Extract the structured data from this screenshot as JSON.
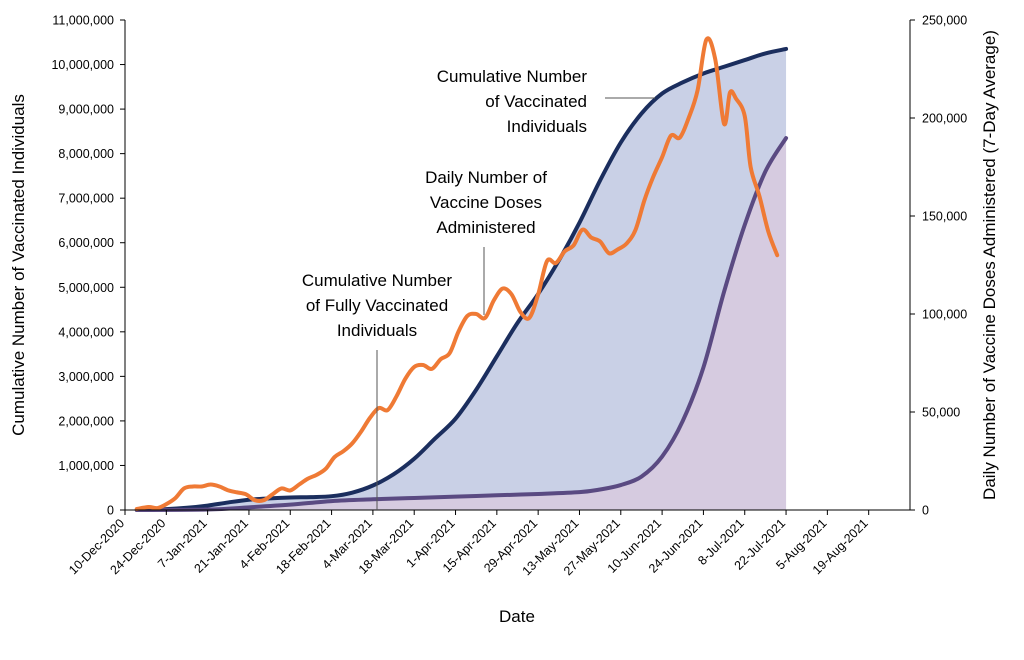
{
  "chart_data": {
    "type": "area",
    "xlabel": "Date",
    "ylabel": "Cumulative Number of Vaccinated Individuals",
    "y2label": "Daily Number of Vaccine Doses Administered (7-Day Average)",
    "xlim": [
      "2020-12-10",
      "2021-09-02"
    ],
    "ylim": [
      0,
      11000000
    ],
    "y2lim": [
      0,
      250000
    ],
    "x_tick_labels": [
      "10-Dec-2020",
      "24-Dec-2020",
      "7-Jan-2021",
      "21-Jan-2021",
      "4-Feb-2021",
      "18-Feb-2021",
      "4-Mar-2021",
      "18-Mar-2021",
      "1-Apr-2021",
      "15-Apr-2021",
      "29-Apr-2021",
      "13-May-2021",
      "27-May-2021",
      "10-Jun-2021",
      "24-Jun-2021",
      "8-Jul-2021",
      "22-Jul-2021",
      "5-Aug-2021",
      "19-Aug-2021"
    ],
    "y_tick_labels": [
      "0",
      "1,000,000",
      "2,000,000",
      "3,000,000",
      "4,000,000",
      "5,000,000",
      "6,000,000",
      "7,000,000",
      "8,000,000",
      "9,000,000",
      "10,000,000",
      "11,000,000"
    ],
    "y2_tick_labels": [
      "0",
      "50,000",
      "100,000",
      "150,000",
      "200,000",
      "250,000"
    ],
    "grid": false,
    "legend": "none",
    "series": [
      {
        "name": "Cumulative Number of Vaccinated Individuals",
        "axis": "left",
        "color": "#1b2e5e",
        "fill": "#c9d0e6",
        "x": [
          "2020-12-14",
          "2020-12-24",
          "2020-12-31",
          "2021-01-07",
          "2021-01-14",
          "2021-01-21",
          "2021-01-28",
          "2021-02-04",
          "2021-02-11",
          "2021-02-18",
          "2021-02-25",
          "2021-03-04",
          "2021-03-11",
          "2021-03-18",
          "2021-03-25",
          "2021-04-01",
          "2021-04-08",
          "2021-04-15",
          "2021-04-22",
          "2021-04-29",
          "2021-05-06",
          "2021-05-13",
          "2021-05-20",
          "2021-05-27",
          "2021-06-03",
          "2021-06-10",
          "2021-06-17",
          "2021-06-24",
          "2021-07-01",
          "2021-07-08",
          "2021-07-15",
          "2021-07-22"
        ],
        "values": [
          0,
          20000,
          50000,
          100000,
          170000,
          230000,
          260000,
          280000,
          290000,
          310000,
          390000,
          550000,
          800000,
          1150000,
          1600000,
          2050000,
          2700000,
          3450000,
          4200000,
          4850000,
          5600000,
          6450000,
          7400000,
          8250000,
          8900000,
          9350000,
          9600000,
          9800000,
          9950000,
          10100000,
          10250000,
          10350000
        ]
      },
      {
        "name": "Cumulative Number of Fully Vaccinated Individuals",
        "axis": "left",
        "color": "#5a4a82",
        "fill": "#d9c9de",
        "x": [
          "2020-12-14",
          "2021-01-07",
          "2021-01-21",
          "2021-02-04",
          "2021-02-18",
          "2021-03-04",
          "2021-03-18",
          "2021-04-01",
          "2021-04-15",
          "2021-04-29",
          "2021-05-13",
          "2021-05-20",
          "2021-05-27",
          "2021-06-03",
          "2021-06-10",
          "2021-06-17",
          "2021-06-24",
          "2021-07-01",
          "2021-07-08",
          "2021-07-15",
          "2021-07-22"
        ],
        "values": [
          0,
          10000,
          60000,
          120000,
          200000,
          240000,
          270000,
          300000,
          330000,
          360000,
          400000,
          460000,
          560000,
          750000,
          1200000,
          2000000,
          3200000,
          4900000,
          6400000,
          7600000,
          8350000
        ]
      },
      {
        "name": "Daily Number of Vaccine Doses Administered",
        "axis": "right",
        "color": "#ef7a35",
        "x": [
          "2020-12-14",
          "2020-12-18",
          "2020-12-21",
          "2020-12-24",
          "2020-12-27",
          "2020-12-30",
          "2021-01-02",
          "2021-01-05",
          "2021-01-08",
          "2021-01-11",
          "2021-01-14",
          "2021-01-17",
          "2021-01-20",
          "2021-01-23",
          "2021-01-26",
          "2021-01-29",
          "2021-02-01",
          "2021-02-04",
          "2021-02-07",
          "2021-02-10",
          "2021-02-13",
          "2021-02-16",
          "2021-02-19",
          "2021-02-22",
          "2021-02-25",
          "2021-02-28",
          "2021-03-03",
          "2021-03-06",
          "2021-03-09",
          "2021-03-12",
          "2021-03-15",
          "2021-03-18",
          "2021-03-21",
          "2021-03-24",
          "2021-03-27",
          "2021-03-30",
          "2021-04-02",
          "2021-04-05",
          "2021-04-08",
          "2021-04-11",
          "2021-04-14",
          "2021-04-17",
          "2021-04-20",
          "2021-04-23",
          "2021-04-26",
          "2021-04-29",
          "2021-05-02",
          "2021-05-05",
          "2021-05-08",
          "2021-05-11",
          "2021-05-14",
          "2021-05-17",
          "2021-05-20",
          "2021-05-23",
          "2021-05-26",
          "2021-05-29",
          "2021-06-01",
          "2021-06-04",
          "2021-06-07",
          "2021-06-10",
          "2021-06-13",
          "2021-06-16",
          "2021-06-19",
          "2021-06-22",
          "2021-06-25",
          "2021-06-28",
          "2021-07-01",
          "2021-07-03",
          "2021-07-05",
          "2021-07-08",
          "2021-07-10",
          "2021-07-13",
          "2021-07-16",
          "2021-07-19"
        ],
        "values": [
          500,
          1500,
          1000,
          3000,
          6000,
          11000,
          12000,
          12000,
          13000,
          12000,
          10000,
          9000,
          8000,
          5000,
          5000,
          8000,
          11000,
          10000,
          13000,
          16000,
          18000,
          21000,
          27000,
          30000,
          34000,
          40000,
          47000,
          52000,
          51000,
          58000,
          67000,
          73000,
          74000,
          72000,
          77000,
          80000,
          91000,
          99000,
          100000,
          98000,
          107000,
          113000,
          110000,
          101000,
          98000,
          110000,
          127000,
          126000,
          132000,
          135000,
          143000,
          139000,
          137000,
          131000,
          133000,
          136000,
          143000,
          158000,
          170000,
          180000,
          191000,
          190000,
          200000,
          214000,
          240000,
          230000,
          197000,
          213000,
          210000,
          201000,
          175000,
          160000,
          142000,
          130000
        ]
      }
    ],
    "annotations": [
      {
        "text_lines": [
          "Cumulative Number",
          "of Vaccinated",
          "Individuals"
        ],
        "points_to": "Cumulative Number of Vaccinated Individuals"
      },
      {
        "text_lines": [
          "Daily Number of",
          "Vaccine Doses",
          "Administered"
        ],
        "points_to": "Daily Number of Vaccine Doses Administered"
      },
      {
        "text_lines": [
          "Cumulative Number",
          "of Fully Vaccinated",
          "Individuals"
        ],
        "points_to": "Cumulative Number of Fully Vaccinated Individuals"
      }
    ]
  }
}
